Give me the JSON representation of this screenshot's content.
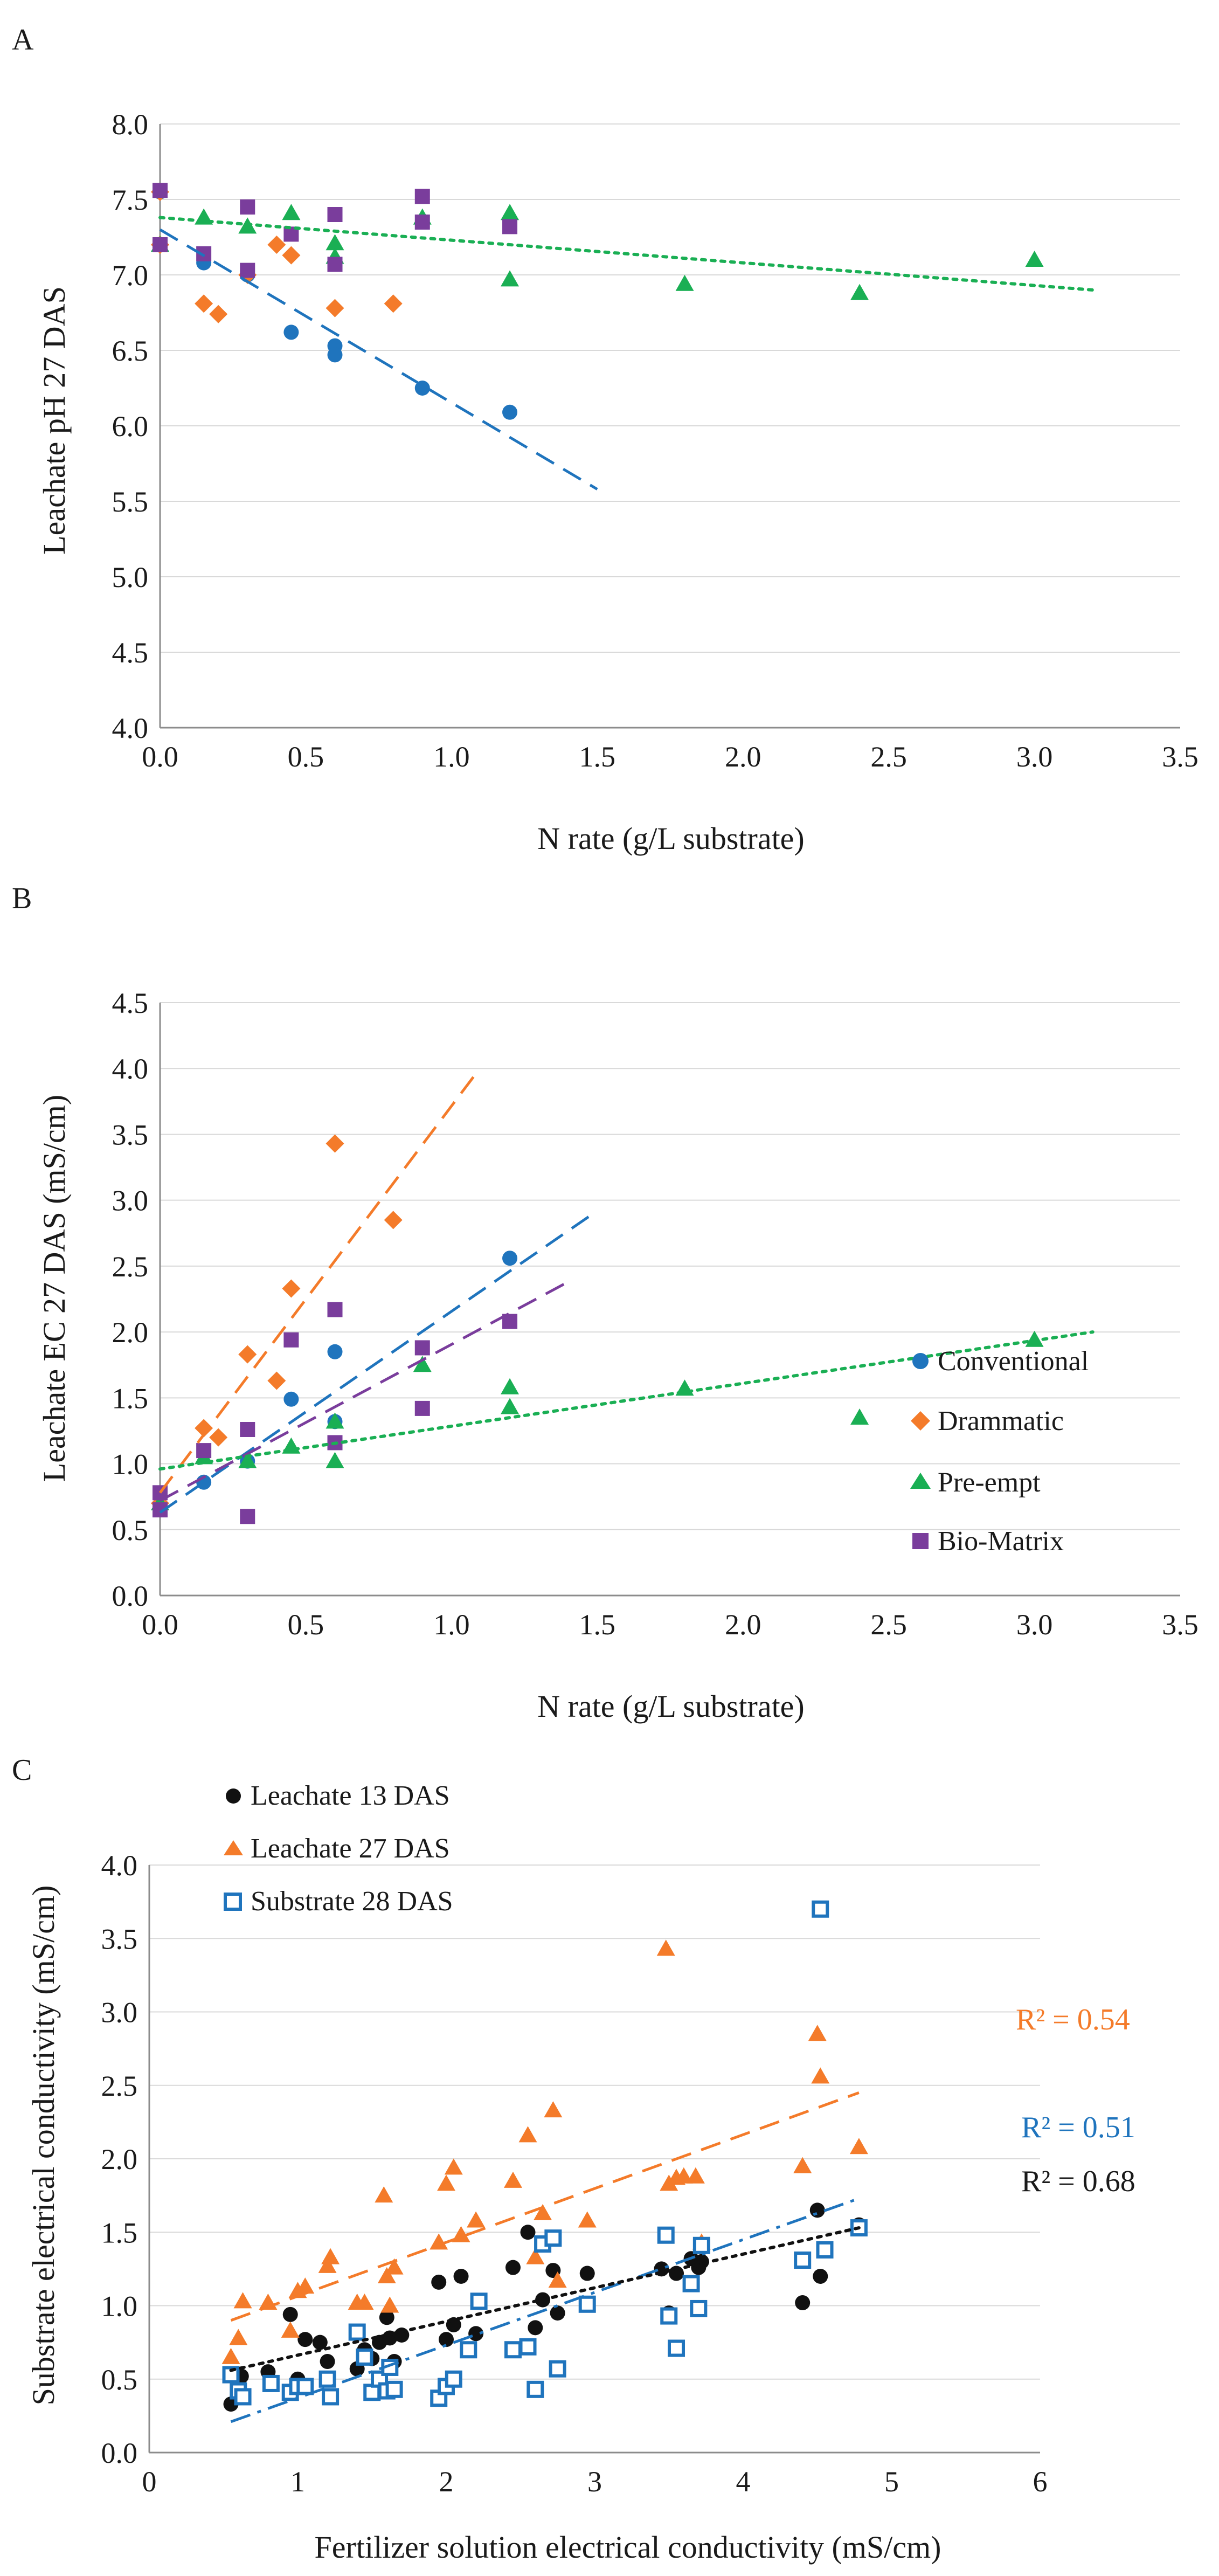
{
  "panel_labels": [
    "A",
    "B",
    "C"
  ],
  "colors": {
    "conventional": "#1f74bd",
    "drammatic": "#f47b2a",
    "preempt": "#1aaf54",
    "biomatrix": "#7a3d9c",
    "leachate13": "#111111",
    "substrate28": "#1f74bd",
    "grid": "#d9d9d9",
    "axis": "#8c8c8c"
  },
  "chart_data": [
    {
      "id": "A",
      "type": "scatter",
      "title": "",
      "xlabel": "N rate (g/L substrate)",
      "ylabel": "Leachate pH 27 DAS",
      "xlim": [
        0,
        3.5
      ],
      "ylim": [
        4.0,
        8.0
      ],
      "xticks": [
        0.0,
        0.5,
        1.0,
        1.5,
        2.0,
        2.5,
        3.0,
        3.5
      ],
      "yticks": [
        4.0,
        4.5,
        5.0,
        5.5,
        6.0,
        6.5,
        7.0,
        7.5,
        8.0
      ],
      "tick_decimals": [
        1,
        1
      ],
      "grid": true,
      "series": [
        {
          "name": "Conventional",
          "color": "#1f74bd",
          "marker": "circle",
          "x": [
            0,
            0,
            0.15,
            0.3,
            0.45,
            0.6,
            0.6,
            0.9,
            1.2
          ],
          "y": [
            7.2,
            7.55,
            7.08,
            7.0,
            6.62,
            6.53,
            6.47,
            6.25,
            6.09
          ]
        },
        {
          "name": "Drammatic",
          "color": "#f47b2a",
          "marker": "diamond",
          "x": [
            0,
            0,
            0.15,
            0.2,
            0.3,
            0.4,
            0.45,
            0.6,
            0.8
          ],
          "y": [
            7.2,
            7.55,
            6.81,
            6.74,
            7.0,
            7.2,
            7.13,
            6.78,
            6.81
          ]
        },
        {
          "name": "Pre-empt",
          "color": "#1aaf54",
          "marker": "triangle",
          "x": [
            0,
            0.15,
            0.3,
            0.45,
            0.6,
            0.6,
            0.9,
            1.2,
            1.2,
            1.8,
            2.4,
            3.0
          ],
          "y": [
            7.2,
            7.38,
            7.32,
            7.41,
            7.21,
            7.12,
            7.38,
            7.41,
            6.97,
            6.94,
            6.88,
            7.1
          ]
        },
        {
          "name": "Bio-Matrix",
          "color": "#7a3d9c",
          "marker": "square",
          "x": [
            0,
            0,
            0.15,
            0.3,
            0.3,
            0.45,
            0.6,
            0.6,
            0.9,
            0.9,
            1.2
          ],
          "y": [
            7.2,
            7.56,
            7.14,
            7.45,
            7.03,
            7.27,
            7.4,
            7.07,
            7.52,
            7.35,
            7.32
          ]
        }
      ],
      "trendlines": [
        {
          "series": "Conventional",
          "style": "dashed",
          "color": "#1f74bd",
          "x": [
            0,
            1.5
          ],
          "y": [
            7.3,
            5.58
          ]
        },
        {
          "series": "Pre-empt",
          "style": "dotted",
          "color": "#1aaf54",
          "x": [
            0,
            3.2
          ],
          "y": [
            7.38,
            6.9
          ]
        }
      ]
    },
    {
      "id": "B",
      "type": "scatter",
      "title": "",
      "xlabel": "N rate (g/L substrate)",
      "ylabel": "Leachate EC 27 DAS (mS/cm)",
      "xlim": [
        0,
        3.5
      ],
      "ylim": [
        0,
        4.5
      ],
      "xticks": [
        0.0,
        0.5,
        1.0,
        1.5,
        2.0,
        2.5,
        3.0,
        3.5
      ],
      "yticks": [
        0.0,
        0.5,
        1.0,
        1.5,
        2.0,
        2.5,
        3.0,
        3.5,
        4.0,
        4.5
      ],
      "tick_decimals": [
        1,
        1
      ],
      "grid": true,
      "legend_position": "bottom-right",
      "series": [
        {
          "name": "Conventional",
          "color": "#1f74bd",
          "marker": "circle",
          "x": [
            0,
            0,
            0.15,
            0.3,
            0.45,
            0.6,
            0.6,
            1.2
          ],
          "y": [
            0.68,
            0.78,
            0.86,
            1.02,
            1.49,
            1.85,
            1.32,
            2.56
          ]
        },
        {
          "name": "Drammatic",
          "color": "#f47b2a",
          "marker": "diamond",
          "x": [
            0,
            0.15,
            0.2,
            0.3,
            0.4,
            0.45,
            0.6,
            0.8
          ],
          "y": [
            0.7,
            1.27,
            1.2,
            1.83,
            1.63,
            2.33,
            3.43,
            2.85
          ]
        },
        {
          "name": "Pre-empt",
          "color": "#1aaf54",
          "marker": "triangle",
          "x": [
            0,
            0.15,
            0.3,
            0.45,
            0.6,
            0.6,
            0.9,
            1.2,
            1.2,
            1.8,
            2.4,
            3.0
          ],
          "y": [
            0.7,
            1.05,
            1.02,
            1.13,
            1.02,
            1.32,
            1.75,
            1.58,
            1.43,
            1.57,
            1.35,
            1.94
          ]
        },
        {
          "name": "Bio-Matrix",
          "color": "#7a3d9c",
          "marker": "square",
          "x": [
            0,
            0,
            0.15,
            0.3,
            0.3,
            0.45,
            0.6,
            0.6,
            0.9,
            0.9,
            1.2
          ],
          "y": [
            0.65,
            0.78,
            1.1,
            1.26,
            0.6,
            1.94,
            2.17,
            1.16,
            1.88,
            1.42,
            2.08
          ]
        }
      ],
      "trendlines": [
        {
          "series": "Drammatic",
          "style": "dashed",
          "color": "#f47b2a",
          "x": [
            0,
            1.08
          ],
          "y": [
            0.78,
            3.95
          ]
        },
        {
          "series": "Conventional",
          "style": "dashed",
          "color": "#1f74bd",
          "x": [
            0,
            1.5
          ],
          "y": [
            0.63,
            2.92
          ]
        },
        {
          "series": "Bio-Matrix",
          "style": "dashed",
          "color": "#7a3d9c",
          "x": [
            0,
            1.4
          ],
          "y": [
            0.72,
            2.38
          ]
        },
        {
          "series": "Pre-empt",
          "style": "dotted",
          "color": "#1aaf54",
          "x": [
            0,
            3.2
          ],
          "y": [
            0.96,
            2.0
          ]
        }
      ]
    },
    {
      "id": "C",
      "type": "scatter",
      "title": "",
      "xlabel": "Fertilizer solution electrical conductivity (mS/cm)",
      "ylabel": "Substrate electrical conductivity (mS/cm)",
      "xlim": [
        0,
        6
      ],
      "ylim": [
        0,
        4.0
      ],
      "xticks": [
        0,
        1,
        2,
        3,
        4,
        5,
        6
      ],
      "yticks": [
        0.0,
        0.5,
        1.0,
        1.5,
        2.0,
        2.5,
        3.0,
        3.5,
        4.0
      ],
      "tick_decimals": [
        0,
        1
      ],
      "grid": true,
      "legend_position": "top-left",
      "series": [
        {
          "name": "Leachate 13 DAS",
          "color": "#111111",
          "marker": "circle",
          "x": [
            0.55,
            0.62,
            0.8,
            0.95,
            1.0,
            1.05,
            1.15,
            1.2,
            1.4,
            1.45,
            1.5,
            1.55,
            1.6,
            1.62,
            1.65,
            1.7,
            1.95,
            2.0,
            2.05,
            2.1,
            2.2,
            2.45,
            2.55,
            2.6,
            2.65,
            2.72,
            2.75,
            2.95,
            3.45,
            3.5,
            3.55,
            3.65,
            3.7,
            3.72,
            4.4,
            4.5,
            4.52,
            4.78
          ],
          "y": [
            0.33,
            0.52,
            0.55,
            0.94,
            0.5,
            0.77,
            0.75,
            0.62,
            0.57,
            0.7,
            0.64,
            0.75,
            0.92,
            0.78,
            0.62,
            0.8,
            1.16,
            0.77,
            0.87,
            1.2,
            0.81,
            1.26,
            1.5,
            0.85,
            1.04,
            1.24,
            0.95,
            1.22,
            1.25,
            0.95,
            1.22,
            1.32,
            1.26,
            1.3,
            1.02,
            1.65,
            1.2,
            1.55
          ]
        },
        {
          "name": "Leachate 27 DAS",
          "color": "#f47b2a",
          "marker": "triangle",
          "x": [
            0.55,
            0.6,
            0.63,
            0.8,
            0.95,
            1.0,
            1.05,
            1.2,
            1.22,
            1.4,
            1.45,
            1.58,
            1.6,
            1.62,
            1.65,
            1.95,
            2.0,
            2.05,
            2.1,
            2.2,
            2.45,
            2.55,
            2.6,
            2.65,
            2.72,
            2.75,
            2.95,
            3.48,
            3.5,
            3.55,
            3.6,
            3.68,
            3.72,
            4.4,
            4.5,
            4.52,
            4.78
          ],
          "y": [
            0.65,
            0.78,
            1.03,
            1.02,
            0.83,
            1.1,
            1.13,
            1.27,
            1.33,
            1.02,
            1.02,
            1.75,
            1.2,
            1.0,
            1.26,
            1.43,
            1.83,
            1.94,
            1.48,
            1.58,
            1.85,
            2.16,
            1.33,
            1.63,
            2.33,
            1.17,
            1.58,
            3.43,
            1.83,
            1.87,
            1.88,
            1.88,
            1.43,
            1.95,
            2.85,
            2.56,
            2.08
          ]
        },
        {
          "name": "Substrate 28 DAS",
          "color": "#1f74bd",
          "marker": "open-square",
          "x": [
            0.55,
            0.6,
            0.63,
            0.82,
            0.95,
            1.0,
            1.05,
            1.2,
            1.22,
            1.4,
            1.45,
            1.5,
            1.55,
            1.6,
            1.62,
            1.65,
            1.95,
            2.0,
            2.05,
            2.15,
            2.22,
            2.45,
            2.55,
            2.6,
            2.65,
            2.72,
            2.75,
            2.95,
            3.48,
            3.5,
            3.55,
            3.65,
            3.7,
            3.72,
            4.4,
            4.52,
            4.55,
            4.78
          ],
          "y": [
            0.53,
            0.42,
            0.38,
            0.47,
            0.41,
            0.45,
            0.45,
            0.5,
            0.38,
            0.82,
            0.65,
            0.41,
            0.5,
            0.42,
            0.58,
            0.43,
            0.37,
            0.45,
            0.5,
            0.7,
            1.03,
            0.7,
            0.72,
            0.43,
            1.42,
            1.46,
            0.57,
            1.01,
            1.48,
            0.93,
            0.71,
            1.15,
            0.98,
            1.41,
            1.31,
            3.7,
            1.38,
            1.53
          ]
        }
      ],
      "trendlines": [
        {
          "series": "Leachate 27 DAS",
          "style": "dashed",
          "color": "#f47b2a",
          "x": [
            0.55,
            4.78
          ],
          "y": [
            0.9,
            2.45
          ]
        },
        {
          "series": "Substrate 28 DAS",
          "style": "dashdot",
          "color": "#1f74bd",
          "x": [
            0.55,
            4.78
          ],
          "y": [
            0.21,
            1.73
          ]
        },
        {
          "series": "Leachate 13 DAS",
          "style": "dotted",
          "color": "#111111",
          "x": [
            0.55,
            4.78
          ],
          "y": [
            0.56,
            1.53
          ]
        }
      ],
      "annotations": [
        {
          "text": "R² = 0.54",
          "color": "#f47b2a"
        },
        {
          "text": "R² = 0.51",
          "color": "#1f74bd"
        },
        {
          "text": "R² = 0.68",
          "color": "#111111"
        }
      ]
    }
  ]
}
